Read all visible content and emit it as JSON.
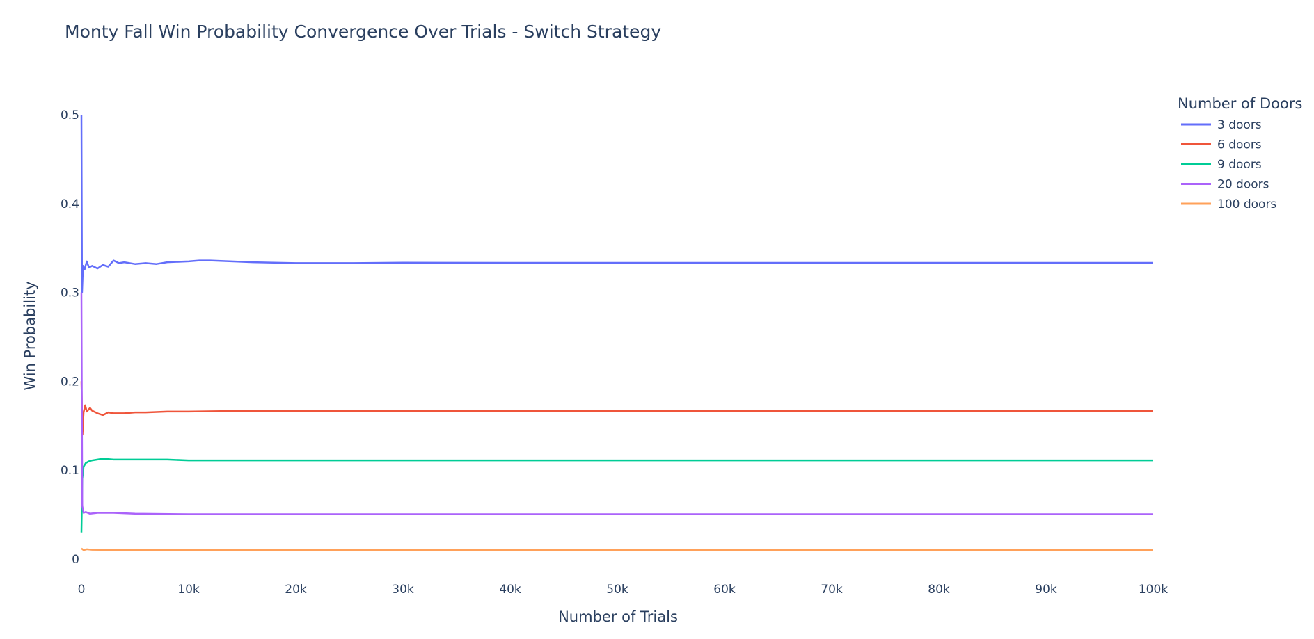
{
  "chart_data": {
    "type": "line",
    "title": "Monty Fall Win Probability Convergence Over Trials - Switch Strategy",
    "xlabel": "Number of Trials",
    "ylabel": "Win Probability",
    "xlim": [
      0,
      100000
    ],
    "ylim": [
      0,
      0.5
    ],
    "x_ticks": [
      0,
      10000,
      20000,
      30000,
      40000,
      50000,
      60000,
      70000,
      80000,
      90000,
      100000
    ],
    "x_tick_labels": [
      "0",
      "10k",
      "20k",
      "30k",
      "40k",
      "50k",
      "60k",
      "70k",
      "80k",
      "90k",
      "100k"
    ],
    "y_ticks": [
      0,
      0.1,
      0.2,
      0.3,
      0.4,
      0.5
    ],
    "y_tick_labels": [
      "0",
      "0.1",
      "0.2",
      "0.3",
      "0.4",
      "0.5"
    ],
    "grid": false,
    "legend": {
      "title": "Number of Doors",
      "placement": "top-right"
    },
    "series": [
      {
        "name": "3 doors",
        "color": "#636efa",
        "x": [
          1,
          60,
          150,
          300,
          500,
          700,
          1000,
          1500,
          2000,
          2500,
          3000,
          3500,
          4000,
          5000,
          6000,
          7000,
          8000,
          10000,
          11000,
          12000,
          14000,
          16000,
          20000,
          25000,
          30000,
          40000,
          60000,
          80000,
          100000
        ],
        "y": [
          0.5,
          0.3,
          0.33,
          0.326,
          0.335,
          0.328,
          0.33,
          0.327,
          0.331,
          0.329,
          0.336,
          0.333,
          0.334,
          0.332,
          0.333,
          0.332,
          0.334,
          0.335,
          0.336,
          0.336,
          0.335,
          0.334,
          0.333,
          0.333,
          0.3335,
          0.3333,
          0.3333,
          0.3333,
          0.3333
        ]
      },
      {
        "name": "6 doors",
        "color": "#EF553B",
        "x": [
          1,
          100,
          200,
          350,
          500,
          800,
          1000,
          1500,
          2000,
          2500,
          3000,
          4000,
          5000,
          6000,
          8000,
          10000,
          13000,
          20000,
          40000,
          70000,
          100000
        ],
        "y": [
          0.2,
          0.14,
          0.165,
          0.173,
          0.166,
          0.17,
          0.167,
          0.164,
          0.162,
          0.165,
          0.164,
          0.164,
          0.165,
          0.165,
          0.166,
          0.166,
          0.1665,
          0.1665,
          0.1665,
          0.1665,
          0.1665
        ]
      },
      {
        "name": "9 doors",
        "color": "#00cc96",
        "x": [
          1,
          80,
          200,
          400,
          700,
          1000,
          1500,
          2000,
          3000,
          4000,
          6000,
          8000,
          10000,
          20000,
          50000,
          100000
        ],
        "y": [
          0.03,
          0.09,
          0.104,
          0.108,
          0.11,
          0.111,
          0.112,
          0.113,
          0.112,
          0.112,
          0.112,
          0.112,
          0.111,
          0.111,
          0.111,
          0.111
        ]
      },
      {
        "name": "20 doors",
        "color": "#ab63fa",
        "x": [
          1,
          80,
          200,
          400,
          800,
          1500,
          3000,
          5000,
          10000,
          50000,
          100000
        ],
        "y": [
          0.3,
          0.06,
          0.052,
          0.053,
          0.051,
          0.052,
          0.052,
          0.051,
          0.0505,
          0.0505,
          0.0505
        ]
      },
      {
        "name": "100 doors",
        "color": "#FFA15A",
        "x": [
          1,
          200,
          500,
          1000,
          5000,
          20000,
          50000,
          100000
        ],
        "y": [
          0.012,
          0.01,
          0.011,
          0.0105,
          0.01,
          0.01,
          0.01,
          0.01
        ]
      }
    ]
  }
}
